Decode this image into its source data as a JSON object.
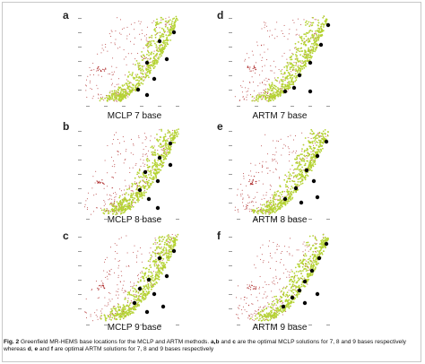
{
  "figure": {
    "panels": [
      {
        "letter": "a",
        "label": "MCLP 7 base",
        "method": "MCLP",
        "bases": 7
      },
      {
        "letter": "d",
        "label": "ARTM 7 base",
        "method": "ARTM",
        "bases": 7
      },
      {
        "letter": "b",
        "label": "MCLP 8 base",
        "method": "MCLP",
        "bases": 8
      },
      {
        "letter": "e",
        "label": "ARTM 8 base",
        "method": "ARTM",
        "bases": 8
      },
      {
        "letter": "c",
        "label": "MCLP 9 base",
        "method": "MCLP",
        "bases": 9
      },
      {
        "letter": "f",
        "label": "ARTM 9 base",
        "method": "ARTM",
        "bases": 9
      }
    ],
    "colors": {
      "coverage_dots": "#b5d334",
      "demand_dots": "#b03030",
      "base_markers": "#000000",
      "axis_text": "#9a9a9a"
    }
  },
  "caption": {
    "fig_label": "Fig. 2",
    "part1": " Greenfield MR-HEMS base locations for the MCLP and ARTM methods. ",
    "bold1": "a,b",
    "part2": " and ",
    "bold2": "c",
    "part3": " are the optimal MCLP solutions for 7, 8 and 9 bases respectively whereas ",
    "bold3": "d",
    "part4": ", ",
    "bold4": "e",
    "part5": " and ",
    "bold5": "f",
    "part6": " are optimal ARTM solutions for 7, 8 and 9 bases respectively"
  }
}
